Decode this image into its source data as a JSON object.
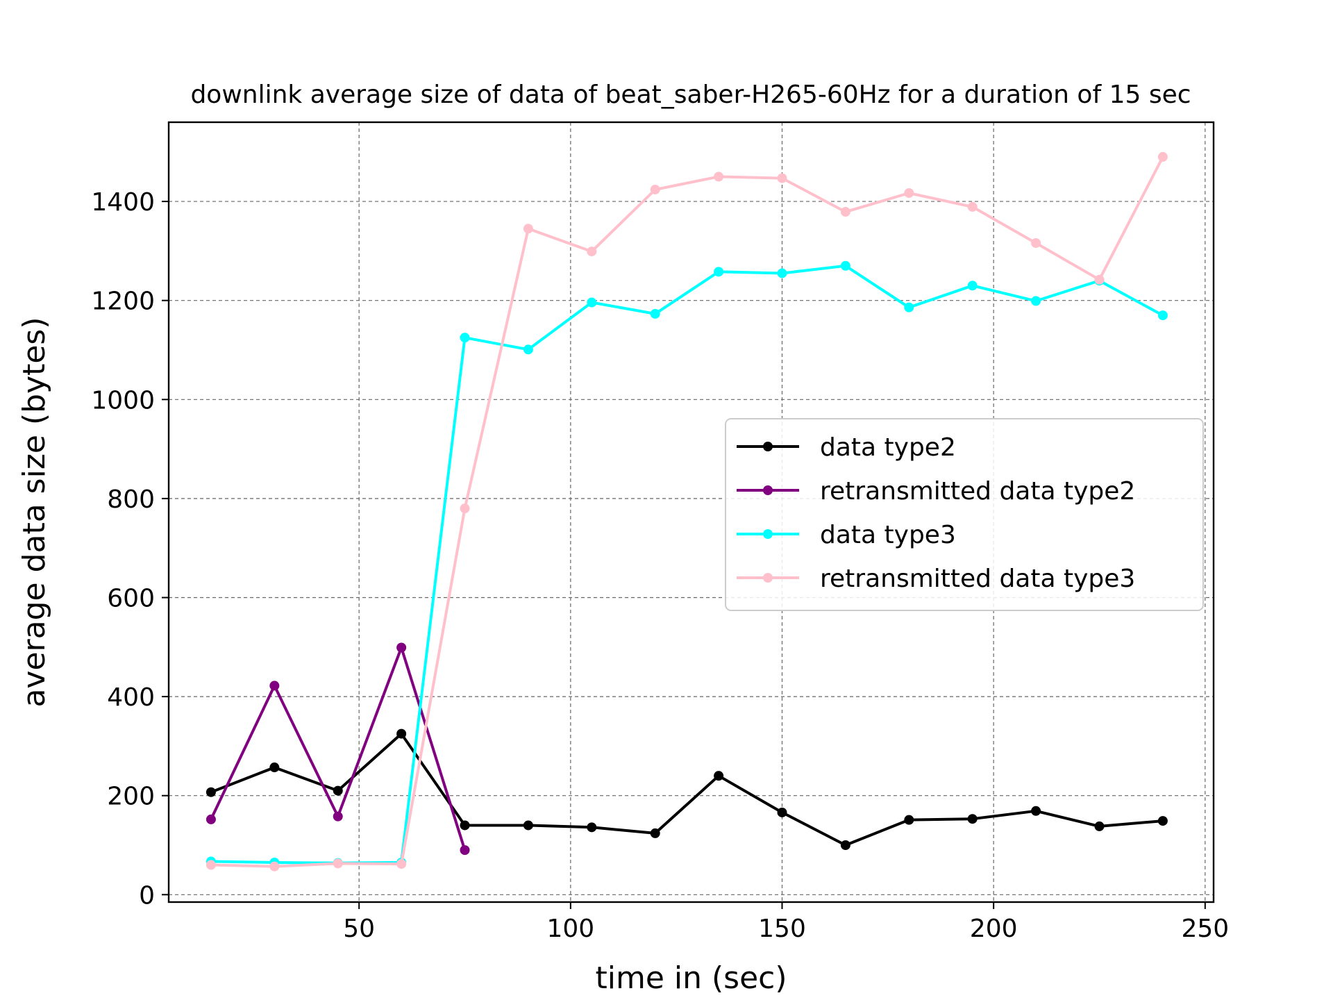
{
  "chart_data": {
    "type": "line",
    "title": "downlink average size of data of beat_saber-H265-60Hz for a duration of 15 sec",
    "xlabel": "time in (sec)",
    "ylabel": "average data size (bytes)",
    "xlim": [
      5,
      252
    ],
    "ylim": [
      -15,
      1560
    ],
    "xticks": [
      50,
      100,
      150,
      200,
      250
    ],
    "yticks": [
      0,
      200,
      400,
      600,
      800,
      1000,
      1200,
      1400
    ],
    "grid": true,
    "legend_position": "center-right",
    "series": [
      {
        "name": "data type2",
        "color": "#000000",
        "x": [
          15,
          30,
          45,
          60,
          75,
          90,
          105,
          120,
          135,
          150,
          165,
          180,
          195,
          210,
          225,
          240
        ],
        "y": [
          207,
          257,
          210,
          325,
          140,
          140,
          136,
          124,
          240,
          166,
          100,
          151,
          153,
          169,
          138,
          149
        ]
      },
      {
        "name": "retransmitted data type2",
        "color": "#800080",
        "x": [
          15,
          30,
          45,
          60,
          75
        ],
        "y": [
          152,
          422,
          158,
          499,
          90
        ]
      },
      {
        "name": "data type3",
        "color": "#00ffff",
        "x": [
          15,
          30,
          45,
          60,
          75,
          90,
          105,
          120,
          135,
          150,
          165,
          180,
          195,
          210,
          225,
          240
        ],
        "y": [
          67,
          65,
          64,
          65,
          1125,
          1101,
          1196,
          1173,
          1258,
          1255,
          1270,
          1186,
          1230,
          1199,
          1240,
          1170
        ]
      },
      {
        "name": "retransmitted data type3",
        "color": "#ffc0cb",
        "x": [
          15,
          30,
          45,
          60,
          75,
          90,
          105,
          120,
          135,
          150,
          165,
          180,
          195,
          210,
          225,
          240
        ],
        "y": [
          60,
          57,
          63,
          62,
          780,
          1345,
          1299,
          1424,
          1450,
          1447,
          1379,
          1417,
          1389,
          1316,
          1242,
          1490
        ]
      }
    ]
  }
}
